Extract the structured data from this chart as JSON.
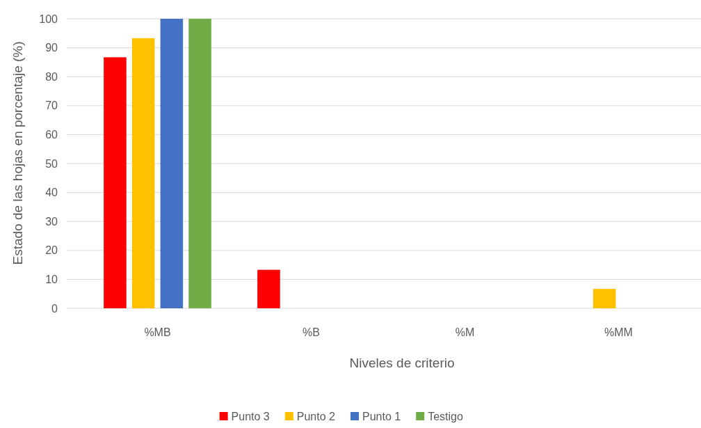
{
  "chart_data": {
    "type": "bar",
    "xlabel": "Niveles de criterio",
    "ylabel": "Estado de las hojas en porcentaje (%)",
    "categories": [
      "%MB",
      "%B",
      "%M",
      "%MM"
    ],
    "series": [
      {
        "name": "Punto 3",
        "color": "#ff0000",
        "values": [
          86.7,
          13.3,
          0,
          0
        ]
      },
      {
        "name": "Punto 2",
        "color": "#ffc000",
        "values": [
          93.3,
          0,
          0,
          6.7
        ]
      },
      {
        "name": "Punto 1",
        "color": "#4472c4",
        "values": [
          100,
          0,
          0,
          0
        ]
      },
      {
        "name": "Testigo",
        "color": "#70ad47",
        "values": [
          100,
          0,
          0,
          0
        ]
      }
    ],
    "ylim": [
      0,
      100
    ],
    "yticks": [
      0,
      10,
      20,
      30,
      40,
      50,
      60,
      70,
      80,
      90,
      100
    ],
    "grid": "y",
    "legend": "bottom"
  }
}
